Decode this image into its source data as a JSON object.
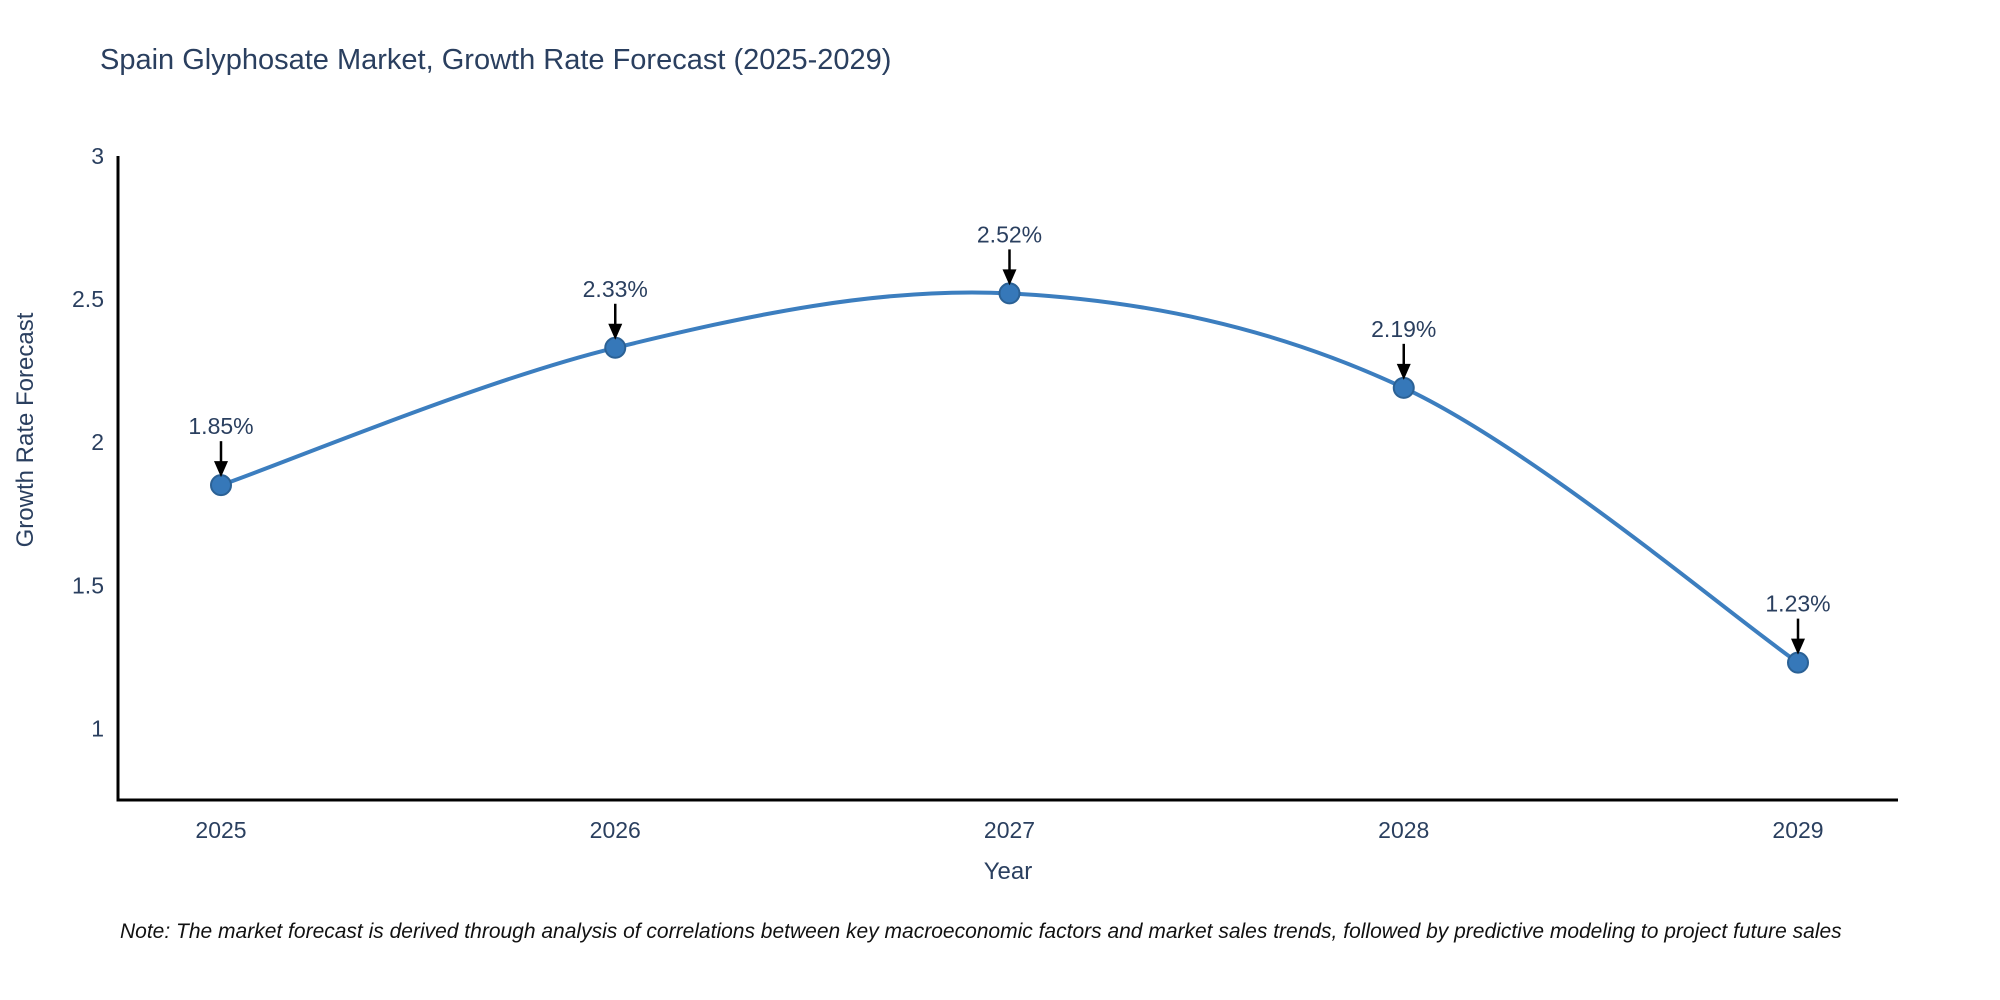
{
  "title": "Spain Glyphosate Market, Growth Rate Forecast (2025-2029)",
  "note": "Note: The market forecast is derived through analysis of correlations between key macroeconomic factors and market sales trends, followed by predictive modeling to project future sales",
  "chart_data": {
    "type": "line",
    "title": "Spain Glyphosate Market, Growth Rate Forecast (2025-2029)",
    "x": [
      "2025",
      "2026",
      "2027",
      "2028",
      "2029"
    ],
    "series": [
      {
        "name": "Growth Rate Forecast",
        "values": [
          1.85,
          2.33,
          2.52,
          2.19,
          1.23
        ]
      }
    ],
    "point_labels": [
      "1.85%",
      "2.33%",
      "2.52%",
      "2.19%",
      "1.23%"
    ],
    "xlabel": "Year",
    "ylabel": "Growth Rate Forecast",
    "ylim": [
      0.75,
      3
    ],
    "yticks": [
      3,
      2.5,
      2,
      1.5,
      1
    ],
    "ytick_labels": [
      "3",
      "2.5",
      "2",
      "1.5",
      "1"
    ],
    "line_shape": "spline",
    "grid": false,
    "legend": "none",
    "annotation_style": "value label above point with downward black arrow",
    "colors": {
      "line": "#3c7ebf",
      "marker_fill": "#3678b9",
      "marker_edge": "#2b6195",
      "arrow": "#000000",
      "text": "#2a3f5f",
      "axis_line": "#000000",
      "note_text": "#111111"
    }
  }
}
